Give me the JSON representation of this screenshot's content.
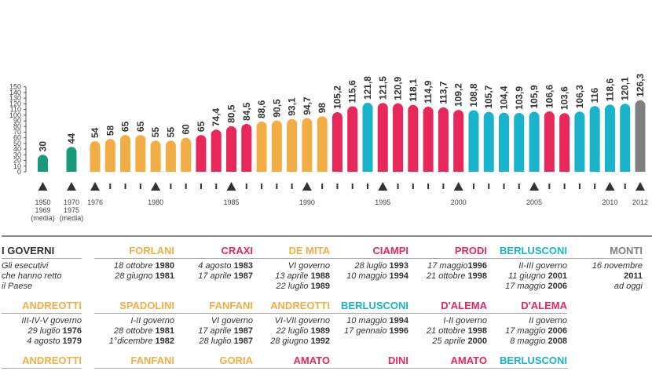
{
  "chart_data": {
    "type": "bar",
    "ylim": [
      0,
      150
    ],
    "yticks": [
      "0",
      "10",
      "20",
      "30",
      "40",
      "50",
      "60",
      "70",
      "80",
      "90",
      "100",
      "110",
      "120",
      "130",
      "140",
      "150"
    ],
    "colors": {
      "green": "#1a9a7c",
      "orange": "#f2ae45",
      "red": "#e8275a",
      "cyan": "#19b4cc",
      "gray": "#808080"
    },
    "bars": [
      {
        "value": 30,
        "label": "30",
        "color": "green"
      },
      {
        "value": 44,
        "label": "44",
        "color": "green"
      },
      {
        "value": 54,
        "label": "54",
        "color": "orange"
      },
      {
        "value": 58,
        "label": "58",
        "color": "orange"
      },
      {
        "value": 65,
        "label": "65",
        "color": "orange"
      },
      {
        "value": 65,
        "label": "65",
        "color": "orange"
      },
      {
        "value": 55,
        "label": "55",
        "color": "orange"
      },
      {
        "value": 55,
        "label": "55",
        "color": "orange"
      },
      {
        "value": 60,
        "label": "60",
        "color": "orange"
      },
      {
        "value": 65,
        "label": "65",
        "color": "red"
      },
      {
        "value": 74.4,
        "label": "74,4",
        "color": "red"
      },
      {
        "value": 80.5,
        "label": "80,5",
        "color": "red"
      },
      {
        "value": 84.5,
        "label": "84,5",
        "color": "red"
      },
      {
        "value": 88.6,
        "label": "88,6",
        "color": "orange"
      },
      {
        "value": 90.5,
        "label": "90,5",
        "color": "orange"
      },
      {
        "value": 93.1,
        "label": "93,1",
        "color": "orange"
      },
      {
        "value": 94.7,
        "label": "94,7",
        "color": "orange"
      },
      {
        "value": 98,
        "label": "98",
        "color": "orange"
      },
      {
        "value": 105.2,
        "label": "105,2",
        "color": "red"
      },
      {
        "value": 115.6,
        "label": "115,6",
        "color": "red"
      },
      {
        "value": 121.8,
        "label": "121,8",
        "color": "cyan"
      },
      {
        "value": 121.5,
        "label": "121,5",
        "color": "red"
      },
      {
        "value": 120.9,
        "label": "120,9",
        "color": "red"
      },
      {
        "value": 118.1,
        "label": "118,1",
        "color": "red"
      },
      {
        "value": 114.9,
        "label": "114,9",
        "color": "red"
      },
      {
        "value": 113.7,
        "label": "113,7",
        "color": "red"
      },
      {
        "value": 109.2,
        "label": "109,2",
        "color": "red"
      },
      {
        "value": 108.8,
        "label": "108,8",
        "color": "cyan"
      },
      {
        "value": 105.7,
        "label": "105,7",
        "color": "cyan"
      },
      {
        "value": 104.4,
        "label": "104,4",
        "color": "cyan"
      },
      {
        "value": 103.9,
        "label": "103,9",
        "color": "cyan"
      },
      {
        "value": 105.9,
        "label": "105,9",
        "color": "cyan"
      },
      {
        "value": 106.6,
        "label": "106,6",
        "color": "red"
      },
      {
        "value": 103.6,
        "label": "103,6",
        "color": "red"
      },
      {
        "value": 106.3,
        "label": "106,3",
        "color": "cyan"
      },
      {
        "value": 116,
        "label": "116",
        "color": "cyan"
      },
      {
        "value": 118.6,
        "label": "118,6",
        "color": "cyan"
      },
      {
        "value": 120.1,
        "label": "120,1",
        "color": "cyan"
      },
      {
        "value": 126.3,
        "label": "126,3",
        "color": "gray"
      }
    ],
    "markers": [
      {
        "bar": 0,
        "kind": "triangle",
        "label": [
          "1950",
          "1969",
          "(media)"
        ]
      },
      {
        "bar": 1,
        "kind": "triangle",
        "label": [
          "1970",
          "1975",
          "(media)"
        ]
      },
      {
        "bar": 2,
        "kind": "triangle",
        "label": [
          "1976"
        ]
      },
      {
        "bar": 3,
        "kind": "tick"
      },
      {
        "bar": 4,
        "kind": "tick"
      },
      {
        "bar": 5,
        "kind": "tick"
      },
      {
        "bar": 6,
        "kind": "triangle",
        "label": [
          "1980"
        ]
      },
      {
        "bar": 7,
        "kind": "tick"
      },
      {
        "bar": 8,
        "kind": "tick"
      },
      {
        "bar": 9,
        "kind": "tick"
      },
      {
        "bar": 10,
        "kind": "tick"
      },
      {
        "bar": 11,
        "kind": "triangle",
        "label": [
          "1985"
        ]
      },
      {
        "bar": 12,
        "kind": "tick"
      },
      {
        "bar": 13,
        "kind": "tick"
      },
      {
        "bar": 14,
        "kind": "tick"
      },
      {
        "bar": 15,
        "kind": "tick"
      },
      {
        "bar": 16,
        "kind": "triangle",
        "label": [
          "1990"
        ]
      },
      {
        "bar": 17,
        "kind": "tick"
      },
      {
        "bar": 18,
        "kind": "tick"
      },
      {
        "bar": 19,
        "kind": "tick"
      },
      {
        "bar": 20,
        "kind": "tick"
      },
      {
        "bar": 21,
        "kind": "triangle",
        "label": [
          "1995"
        ]
      },
      {
        "bar": 22,
        "kind": "tick"
      },
      {
        "bar": 23,
        "kind": "tick"
      },
      {
        "bar": 24,
        "kind": "tick"
      },
      {
        "bar": 25,
        "kind": "tick"
      },
      {
        "bar": 26,
        "kind": "triangle",
        "label": [
          "2000"
        ]
      },
      {
        "bar": 27,
        "kind": "tick"
      },
      {
        "bar": 28,
        "kind": "tick"
      },
      {
        "bar": 29,
        "kind": "tick"
      },
      {
        "bar": 30,
        "kind": "tick"
      },
      {
        "bar": 31,
        "kind": "triangle",
        "label": [
          "2005"
        ]
      },
      {
        "bar": 32,
        "kind": "tick"
      },
      {
        "bar": 33,
        "kind": "tick"
      },
      {
        "bar": 34,
        "kind": "tick"
      },
      {
        "bar": 35,
        "kind": "tick"
      },
      {
        "bar": 36,
        "kind": "triangle",
        "label": [
          "2010"
        ]
      },
      {
        "bar": 37,
        "kind": "tick"
      },
      {
        "bar": 38,
        "kind": "triangle",
        "label": [
          "2012"
        ]
      }
    ]
  },
  "governments": [
    {
      "name": "I GOVERNI",
      "color": "#333333",
      "first": true,
      "lines": [
        [
          "Gli esecutivi",
          ""
        ],
        [
          "che hanno retto",
          ""
        ],
        [
          "il Paese",
          ""
        ]
      ]
    },
    {
      "name": "FORLANI",
      "color": "#f2ae45",
      "lines": [
        [
          "18 ottobre ",
          "1980"
        ],
        [
          "28 giugno ",
          "1981"
        ]
      ]
    },
    {
      "name": "CRAXI",
      "color": "#e8275a",
      "lines": [
        [
          "4 agosto ",
          "1983"
        ],
        [
          "17 aprile ",
          "1987"
        ]
      ]
    },
    {
      "name": "DE MITA",
      "color": "#f2ae45",
      "lines": [
        [
          "VI governo",
          ""
        ],
        [
          "13 aprile ",
          "1988"
        ],
        [
          "22 luglio ",
          "1989"
        ]
      ]
    },
    {
      "name": "CIAMPI",
      "color": "#e8275a",
      "lines": [
        [
          "28 luglio ",
          "1993"
        ],
        [
          "10 maggio ",
          "1994"
        ]
      ]
    },
    {
      "name": "PRODI",
      "color": "#e8275a",
      "lines": [
        [
          "17 maggio",
          "1996"
        ],
        [
          "21 ottobre ",
          "1998"
        ]
      ]
    },
    {
      "name": "BERLUSCONI",
      "color": "#19b4cc",
      "lines": [
        [
          "II-III governo",
          ""
        ],
        [
          "11 giugno ",
          "2001"
        ],
        [
          "17 maggio ",
          "2006"
        ]
      ]
    },
    {
      "name": "MONTI",
      "color": "#808080",
      "lines": [
        [
          "16 novembre",
          ""
        ],
        [
          "",
          "2011"
        ],
        [
          "ad oggi",
          ""
        ]
      ]
    },
    {
      "name": "ANDREOTTI",
      "color": "#f2ae45",
      "lines": [
        [
          "III-IV-V governo",
          ""
        ],
        [
          "29 luglio ",
          "1976"
        ],
        [
          "4 agosto ",
          "1979"
        ]
      ]
    },
    {
      "name": "SPADOLINI",
      "color": "#f2ae45",
      "lines": [
        [
          "I-II governo",
          ""
        ],
        [
          "28 ottobre ",
          "1981"
        ],
        [
          "1°dicembre ",
          "1982"
        ]
      ]
    },
    {
      "name": "FANFANI",
      "color": "#f2ae45",
      "lines": [
        [
          "VI governo",
          ""
        ],
        [
          "17 aprile ",
          "1987"
        ],
        [
          "28 luglio ",
          "1987"
        ]
      ]
    },
    {
      "name": "ANDREOTTI",
      "color": "#f2ae45",
      "lines": [
        [
          "VI-VII governo",
          ""
        ],
        [
          "22 luglio ",
          "1989"
        ],
        [
          "28 giugno ",
          "1992"
        ]
      ]
    },
    {
      "name": "BERLUSCONI",
      "color": "#19b4cc",
      "lines": [
        [
          "10 maggio ",
          "1994"
        ],
        [
          "17 gennaio ",
          "1996"
        ]
      ]
    },
    {
      "name": "D'ALEMA",
      "color": "#e8275a",
      "lines": [
        [
          "I-II governo",
          ""
        ],
        [
          "21 ottobre ",
          "1998"
        ],
        [
          "25 aprile ",
          "2000"
        ]
      ]
    },
    {
      "name": "D'ALEMA",
      "color": "#e8275a",
      "lines": [
        [
          "II governo",
          ""
        ],
        [
          "17 maggio ",
          "2006"
        ],
        [
          "8 maggio ",
          "2008"
        ]
      ]
    },
    {
      "name": "",
      "color": "#333333",
      "lines": []
    },
    {
      "name": "ANDREOTTI",
      "color": "#f2ae45",
      "lines": []
    },
    {
      "name": "FANFANI",
      "color": "#f2ae45",
      "lines": []
    },
    {
      "name": "GORIA",
      "color": "#f2ae45",
      "lines": []
    },
    {
      "name": "AMATO",
      "color": "#e8275a",
      "lines": []
    },
    {
      "name": "DINI",
      "color": "#e8275a",
      "lines": []
    },
    {
      "name": "AMATO",
      "color": "#e8275a",
      "lines": []
    },
    {
      "name": "BERLUSCONI",
      "color": "#19b4cc",
      "lines": []
    }
  ]
}
